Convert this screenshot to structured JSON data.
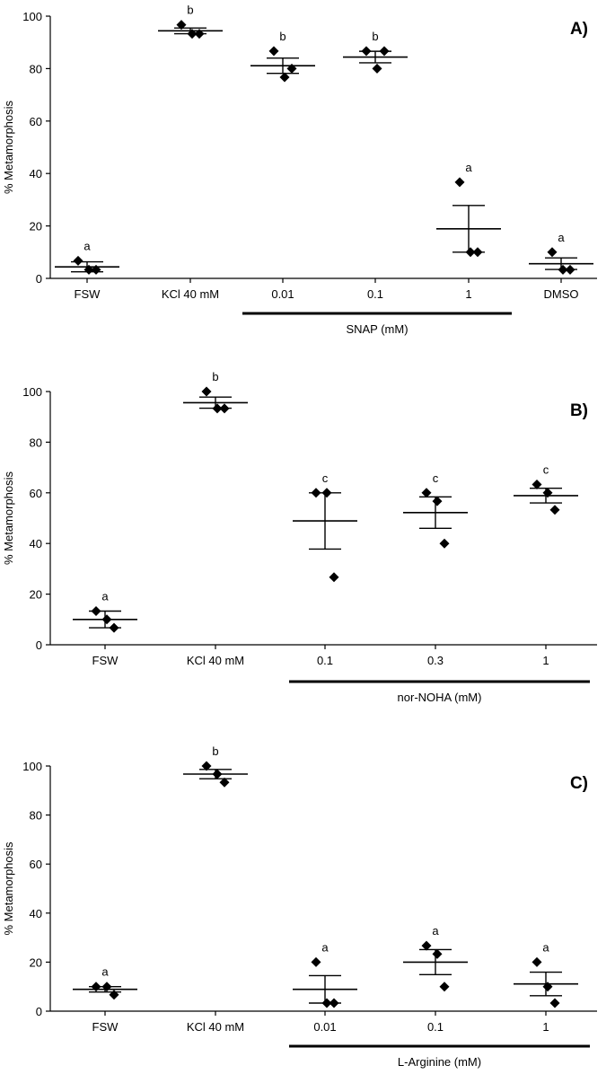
{
  "chart_data": [
    {
      "type": "scatter",
      "panel_label": "A)",
      "ylabel": "% Metamorphosis",
      "ylim": [
        0,
        100
      ],
      "yticks": [
        "0",
        "20",
        "40",
        "60",
        "80",
        "100"
      ],
      "categories": [
        "FSW",
        "KCl 40 mM",
        "0.01",
        "0.1",
        "1",
        "DMSO"
      ],
      "group_bracket": {
        "label": "SNAP (mM)",
        "from": 2,
        "to": 4
      },
      "groups": [
        {
          "points": [
            6.7,
            3.3,
            3.3
          ],
          "mean": 4.4,
          "sem": 1.9,
          "letter": "a"
        },
        {
          "points": [
            96.7,
            93.3,
            93.3
          ],
          "mean": 94.4,
          "sem": 1.1,
          "letter": "b"
        },
        {
          "points": [
            86.7,
            76.7,
            80.0
          ],
          "mean": 81.1,
          "sem": 2.9,
          "letter": "b"
        },
        {
          "points": [
            86.7,
            80.0,
            86.7
          ],
          "mean": 84.4,
          "sem": 2.2,
          "letter": "b"
        },
        {
          "points": [
            36.7,
            10.0,
            10.0
          ],
          "mean": 18.9,
          "sem": 8.9,
          "letter": "a"
        },
        {
          "points": [
            10.0,
            3.3,
            3.3
          ],
          "mean": 5.6,
          "sem": 2.2,
          "letter": "a"
        }
      ]
    },
    {
      "type": "scatter",
      "panel_label": "B)",
      "ylabel": "% Metamorphosis",
      "ylim": [
        0,
        100
      ],
      "yticks": [
        "0",
        "20",
        "40",
        "60",
        "80",
        "100"
      ],
      "categories": [
        "FSW",
        "KCl 40 mM",
        "0.1",
        "0.3",
        "1"
      ],
      "group_bracket": {
        "label": "nor-NOHA (mM)",
        "from": 2,
        "to": 4
      },
      "groups": [
        {
          "points": [
            13.3,
            10.0,
            6.7
          ],
          "mean": 10.0,
          "sem": 3.3,
          "letter": "a"
        },
        {
          "points": [
            100.0,
            93.3,
            93.3
          ],
          "mean": 95.6,
          "sem": 2.2,
          "letter": "b"
        },
        {
          "points": [
            60.0,
            60.0,
            26.7
          ],
          "mean": 48.9,
          "sem": 11.1,
          "letter": "c"
        },
        {
          "points": [
            60.0,
            56.7,
            40.0
          ],
          "mean": 52.2,
          "sem": 6.2,
          "letter": "c"
        },
        {
          "points": [
            63.3,
            60.0,
            53.3
          ],
          "mean": 58.9,
          "sem": 2.9,
          "letter": "c"
        }
      ]
    },
    {
      "type": "scatter",
      "panel_label": "C)",
      "ylabel": "% Metamorphosis",
      "ylim": [
        0,
        100
      ],
      "yticks": [
        "0",
        "20",
        "40",
        "60",
        "80",
        "100"
      ],
      "categories": [
        "FSW",
        "KCl 40 mM",
        "0.01",
        "0.1",
        "1"
      ],
      "group_bracket": {
        "label": "L-Arginine (mM)",
        "from": 2,
        "to": 4
      },
      "groups": [
        {
          "points": [
            10.0,
            10.0,
            6.7
          ],
          "mean": 8.9,
          "sem": 1.1,
          "letter": "a"
        },
        {
          "points": [
            100.0,
            96.7,
            93.3
          ],
          "mean": 96.7,
          "sem": 1.9,
          "letter": "b"
        },
        {
          "points": [
            20.0,
            3.3,
            3.3
          ],
          "mean": 8.9,
          "sem": 5.6,
          "letter": "a"
        },
        {
          "points": [
            26.7,
            23.3,
            10.0
          ],
          "mean": 20.0,
          "sem": 5.1,
          "letter": "a"
        },
        {
          "points": [
            20.0,
            10.0,
            3.3
          ],
          "mean": 11.1,
          "sem": 4.8,
          "letter": "a"
        }
      ]
    }
  ]
}
